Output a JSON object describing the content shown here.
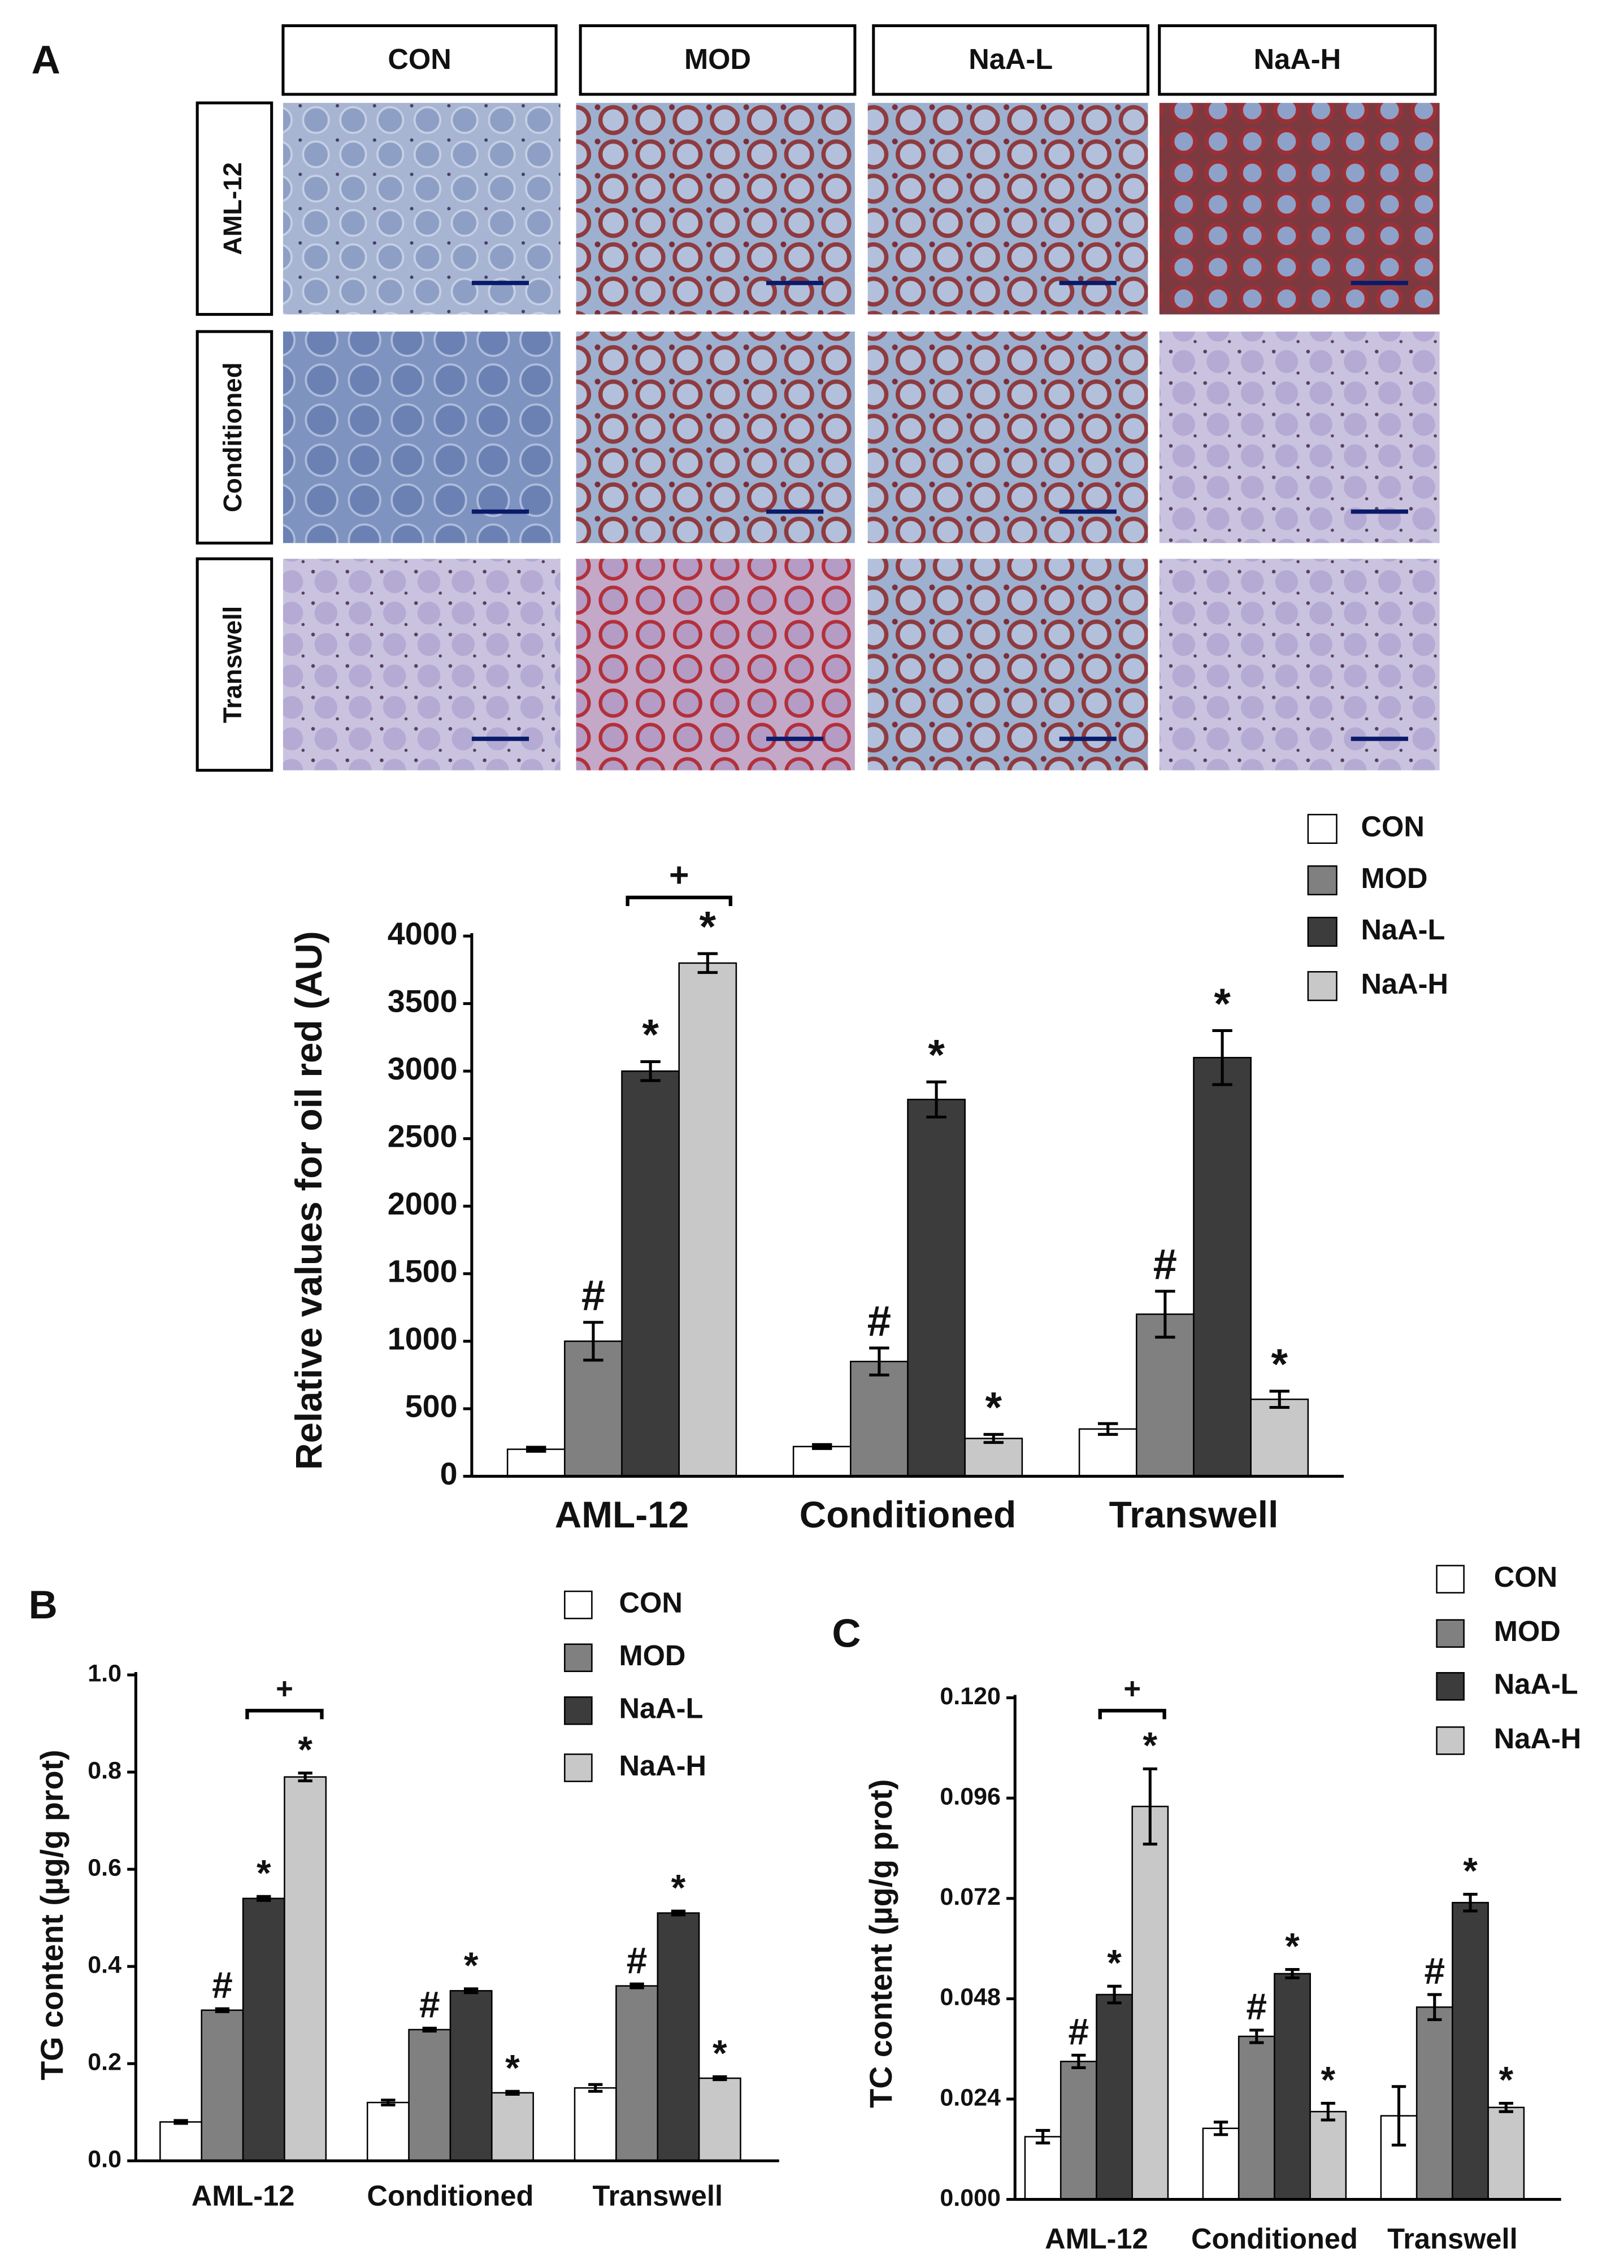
{
  "micrographs": {
    "panel_label": "A",
    "columns": [
      "CON",
      "MOD",
      "NaA-L",
      "NaA-H"
    ],
    "rows": [
      "AML-12",
      "Conditioned",
      "Transwell"
    ]
  },
  "chart_data": [
    {
      "type": "bar",
      "y_label": "Relative values for oil red (AU)",
      "categories": [
        "AML-12",
        "Conditioned",
        "Transwell"
      ],
      "ylim": [
        0,
        4000
      ],
      "yticks": [
        0,
        500,
        1000,
        1500,
        2000,
        2500,
        3000,
        3500,
        4000
      ],
      "bracket_label": "+",
      "series": [
        {
          "name": "CON",
          "color": "#ffffff",
          "values": [
            200,
            220,
            350
          ],
          "errors": [
            15,
            15,
            40
          ]
        },
        {
          "name": "MOD",
          "color": "#808080",
          "values": [
            1000,
            850,
            1200
          ],
          "errors": [
            140,
            100,
            170
          ],
          "annotations": [
            "#",
            "#",
            "#"
          ]
        },
        {
          "name": "NaA-L",
          "color": "#3c3c3c",
          "values": [
            3000,
            2790,
            3100
          ],
          "errors": [
            70,
            130,
            200
          ],
          "annotations": [
            "*",
            "*",
            "*"
          ]
        },
        {
          "name": "NaA-H",
          "color": "#c8c8c8",
          "values": [
            3800,
            280,
            570
          ],
          "errors": [
            70,
            30,
            60
          ],
          "annotations": [
            "*",
            "*",
            "*"
          ]
        }
      ]
    },
    {
      "type": "bar",
      "panel_label": "B",
      "y_label": "TG content (µg/g prot)",
      "categories": [
        "AML-12",
        "Conditioned",
        "Transwell"
      ],
      "ylim": [
        0,
        1.0
      ],
      "yticks": [
        {
          "value": 0,
          "label": "0.0"
        },
        0.2,
        0.4,
        0.6,
        0.8,
        {
          "value": 1.0,
          "label": "1.0"
        }
      ],
      "bracket_label": "+",
      "series": [
        {
          "name": "CON",
          "color": "#ffffff",
          "values": [
            0.08,
            0.12,
            0.15
          ],
          "errors": [
            0.003,
            0.005,
            0.007
          ]
        },
        {
          "name": "MOD",
          "color": "#808080",
          "values": [
            0.31,
            0.27,
            0.36
          ],
          "errors": [
            0.003,
            0.003,
            0.004
          ],
          "annotations": [
            "#",
            "#",
            "#"
          ]
        },
        {
          "name": "NaA-L",
          "color": "#3c3c3c",
          "values": [
            0.54,
            0.35,
            0.51
          ],
          "errors": [
            0.004,
            0.004,
            0.004
          ],
          "annotations": [
            "*",
            "*",
            "*"
          ]
        },
        {
          "name": "NaA-H",
          "color": "#c8c8c8",
          "values": [
            0.79,
            0.14,
            0.17
          ],
          "errors": [
            0.008,
            0.003,
            0.003
          ],
          "annotations": [
            "*",
            "*",
            "*"
          ]
        }
      ]
    },
    {
      "type": "bar",
      "panel_label": "C",
      "y_label": "TC content (µg/g prot)",
      "categories": [
        "AML-12",
        "Conditioned",
        "Transwell"
      ],
      "ylim": [
        0,
        0.12
      ],
      "yticks": [
        {
          "value": 0,
          "label": "0.000"
        },
        {
          "value": 0.024,
          "label": "0.024"
        },
        {
          "value": 0.048,
          "label": "0.048"
        },
        {
          "value": 0.072,
          "label": "0.072"
        },
        {
          "value": 0.096,
          "label": "0.096"
        },
        {
          "value": 0.12,
          "label": "0.120"
        }
      ],
      "bracket_label": "+",
      "series": [
        {
          "name": "CON",
          "color": "#ffffff",
          "values": [
            0.015,
            0.017,
            0.02
          ],
          "errors": [
            0.0015,
            0.0015,
            0.007
          ]
        },
        {
          "name": "MOD",
          "color": "#808080",
          "values": [
            0.033,
            0.039,
            0.046
          ],
          "errors": [
            0.0015,
            0.0015,
            0.003
          ],
          "annotations": [
            "#",
            "#",
            "#"
          ]
        },
        {
          "name": "NaA-L",
          "color": "#3c3c3c",
          "values": [
            0.049,
            0.054,
            0.071
          ],
          "errors": [
            0.002,
            0.001,
            0.002
          ],
          "annotations": [
            "*",
            "*",
            "*"
          ]
        },
        {
          "name": "NaA-H",
          "color": "#c8c8c8",
          "values": [
            0.094,
            0.021,
            0.022
          ],
          "errors": [
            0.009,
            0.002,
            0.001
          ],
          "annotations": [
            "*",
            "*",
            "*"
          ]
        }
      ]
    }
  ]
}
